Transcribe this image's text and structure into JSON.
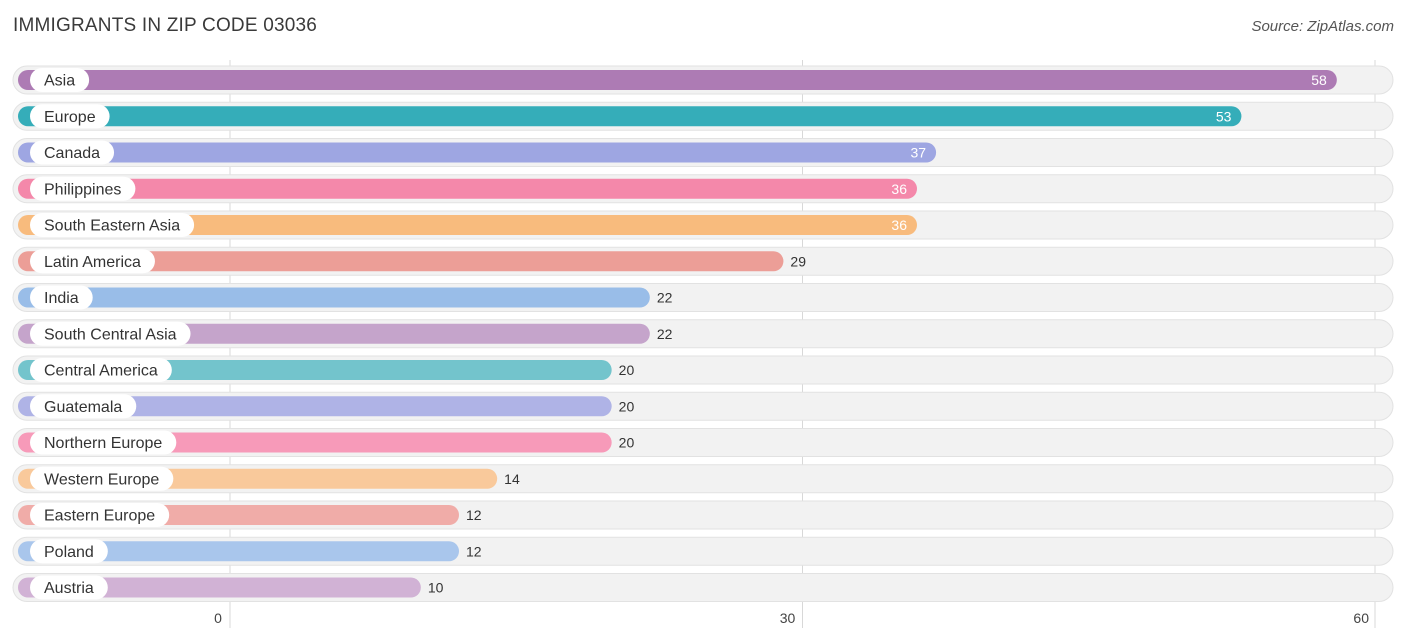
{
  "header": {
    "title": "IMMIGRANTS IN ZIP CODE 03036",
    "source": "Source: ZipAtlas.com"
  },
  "chart_data": {
    "type": "bar",
    "orientation": "horizontal",
    "title": "IMMIGRANTS IN ZIP CODE 03036",
    "xlabel": "",
    "ylabel": "",
    "xlim": [
      0,
      60
    ],
    "ticks": [
      0,
      30,
      60
    ],
    "grid": true,
    "categories": [
      "Asia",
      "Europe",
      "Canada",
      "Philippines",
      "South Eastern Asia",
      "Latin America",
      "India",
      "South Central Asia",
      "Central America",
      "Guatemala",
      "Northern Europe",
      "Western Europe",
      "Eastern Europe",
      "Poland",
      "Austria"
    ],
    "values": [
      58,
      53,
      37,
      36,
      36,
      29,
      22,
      22,
      20,
      20,
      20,
      14,
      12,
      12,
      10
    ],
    "colors": [
      "#ad7bb4",
      "#35adb9",
      "#9ea6e2",
      "#f488aa",
      "#f8bb7d",
      "#ec9e97",
      "#99bde8",
      "#c5a4cb",
      "#73c4cc",
      "#afb3e6",
      "#f79ab9",
      "#f9c99b",
      "#f0aca8",
      "#a9c6ec",
      "#d1b2d5"
    ]
  }
}
